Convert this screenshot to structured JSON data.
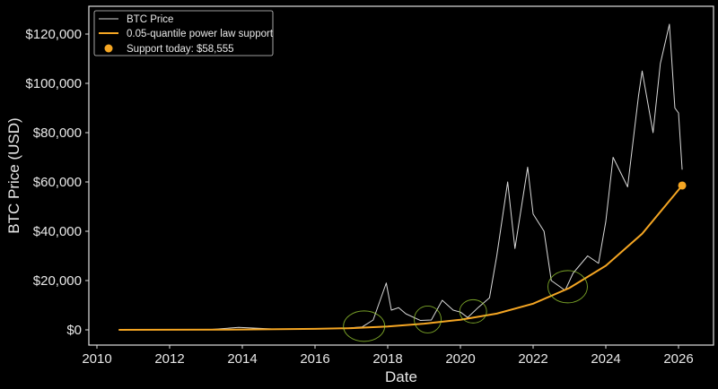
{
  "chart_data": {
    "type": "line",
    "title": "",
    "xlabel": "Date",
    "ylabel": "BTC Price (USD)",
    "xlim": [
      2009.8,
      2026.95
    ],
    "ylim": [
      -6000,
      131000
    ],
    "x_ticks": [
      "2010",
      "2012",
      "2014",
      "2016",
      "2018",
      "2020",
      "2022",
      "2024",
      "2026"
    ],
    "y_ticks": [
      "$0",
      "$20,000",
      "$40,000",
      "$60,000",
      "$80,000",
      "$100,000",
      "$120,000"
    ],
    "grid": false,
    "legend_placement": "top-left",
    "colors": {
      "background": "#000000",
      "price": "#d9d9d9",
      "support": "#f5a623",
      "highlight": "#9acd32"
    },
    "legend": [
      {
        "label": "BTC Price",
        "kind": "line"
      },
      {
        "label": "0.05-quantile power law support",
        "kind": "line"
      },
      {
        "label": "Support today: $58,555",
        "kind": "dot"
      }
    ],
    "series": [
      {
        "name": "BTC Price",
        "x": [
          2010.6,
          2011.5,
          2012.0,
          2013.0,
          2013.9,
          2014.5,
          2015.0,
          2016.0,
          2016.9,
          2017.3,
          2017.6,
          2017.96,
          2018.1,
          2018.3,
          2018.5,
          2018.9,
          2019.2,
          2019.5,
          2019.8,
          2020.0,
          2020.2,
          2020.5,
          2020.8,
          2021.0,
          2021.3,
          2021.5,
          2021.85,
          2022.0,
          2022.3,
          2022.5,
          2022.88,
          2023.1,
          2023.5,
          2023.8,
          2024.0,
          2024.2,
          2024.6,
          2024.9,
          2025.0,
          2025.3,
          2025.5,
          2025.75,
          2025.9,
          2026.0,
          2026.1
        ],
        "y": [
          0.07,
          15,
          6,
          13,
          1000,
          600,
          250,
          430,
          750,
          1200,
          4000,
          19000,
          8000,
          9000,
          6500,
          3800,
          4000,
          12000,
          8000,
          7200,
          5000,
          9200,
          13000,
          30000,
          60000,
          33000,
          66000,
          47000,
          40000,
          20000,
          16000,
          23000,
          30000,
          27000,
          44000,
          70000,
          58000,
          95000,
          105000,
          80000,
          108000,
          124000,
          90000,
          88000,
          65000
        ]
      },
      {
        "name": "0.05-quantile power law support",
        "x": [
          2010.6,
          2012,
          2014,
          2016,
          2017,
          2018,
          2019,
          2020,
          2021,
          2022,
          2023,
          2024,
          2025,
          2026.1
        ],
        "y": [
          5,
          25,
          120,
          420,
          680,
          1350,
          2500,
          4100,
          6600,
          10600,
          17000,
          26000,
          39000,
          58555
        ]
      }
    ],
    "points": [
      {
        "name": "Support today: $58,555",
        "x": 2026.1,
        "y": 58555
      }
    ]
  }
}
